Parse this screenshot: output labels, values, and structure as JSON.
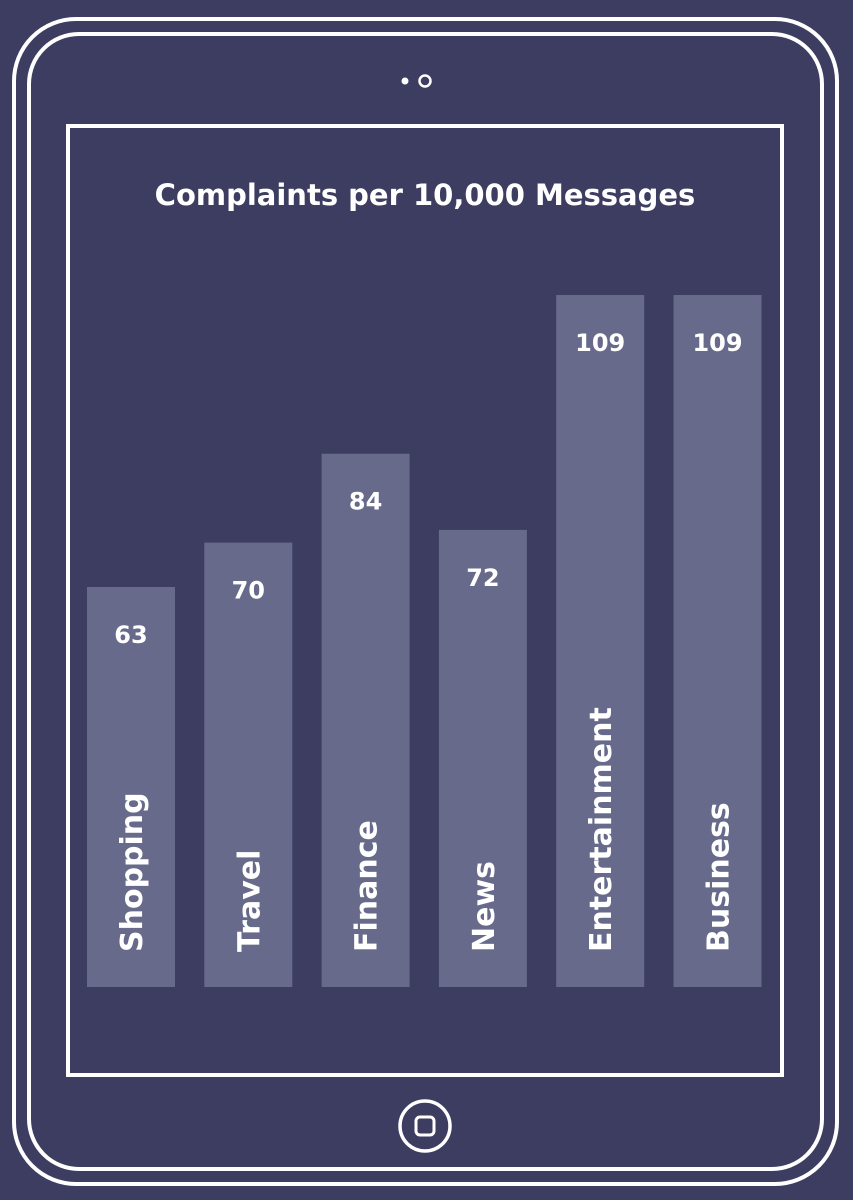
{
  "colors": {
    "background": "#3c3d61",
    "outline": "#ffffff",
    "bar": "#676a8a",
    "text": "#ffffff"
  },
  "device": {
    "camera_icon": "camera-dots-icon",
    "home_icon": "home-button-icon"
  },
  "chart_data": {
    "type": "bar",
    "title": "Complaints per 10,000 Messages",
    "xlabel": "",
    "ylabel": "",
    "categories": [
      "Shopping",
      "Travel",
      "Finance",
      "News",
      "Entertainment",
      "Business"
    ],
    "values": [
      63,
      70,
      84,
      72,
      109,
      109
    ],
    "ylim": [
      0,
      109
    ],
    "grid": false,
    "legend": "none",
    "category_labels_inside_bars": true,
    "value_labels_inside_bars": true
  }
}
